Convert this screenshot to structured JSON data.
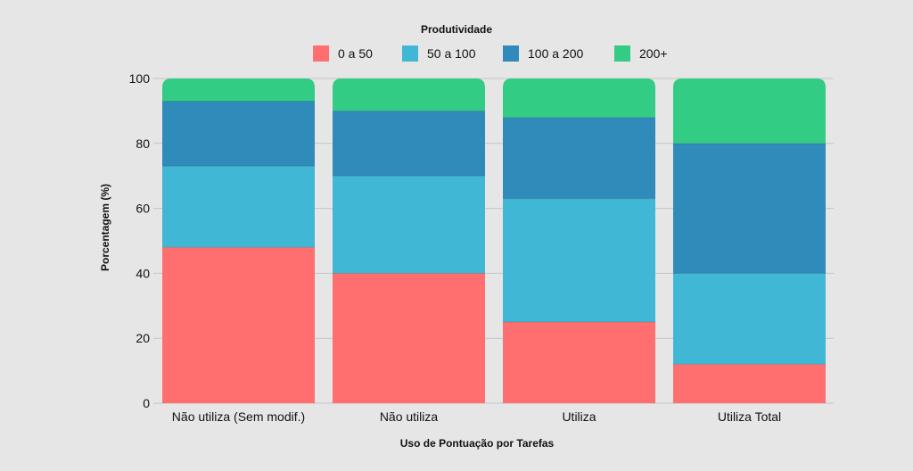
{
  "chart_data": {
    "type": "bar",
    "stacked": true,
    "legend_title": "Produtividade",
    "legend_position": "top",
    "xlabel": "Uso de Pontuação por Tarefas",
    "ylabel": "Porcentagem (%)",
    "ylim": [
      0,
      100
    ],
    "yticks": [
      0,
      20,
      40,
      60,
      80,
      100
    ],
    "grid": true,
    "categories": [
      "Não utiliza (Sem modif.)",
      "Não utiliza",
      "Utiliza",
      "Utiliza Total"
    ],
    "series": [
      {
        "name": "0 a 50",
        "color": "#ff6f6f",
        "values": [
          48,
          40,
          25,
          12
        ]
      },
      {
        "name": "50 a 100",
        "color": "#41b7d6",
        "values": [
          25,
          30,
          38,
          28
        ]
      },
      {
        "name": "100 a 200",
        "color": "#2e8bba",
        "values": [
          20,
          20,
          25,
          40
        ]
      },
      {
        "name": "200+",
        "color": "#33cc84",
        "values": [
          7,
          10,
          12,
          20
        ]
      }
    ]
  }
}
